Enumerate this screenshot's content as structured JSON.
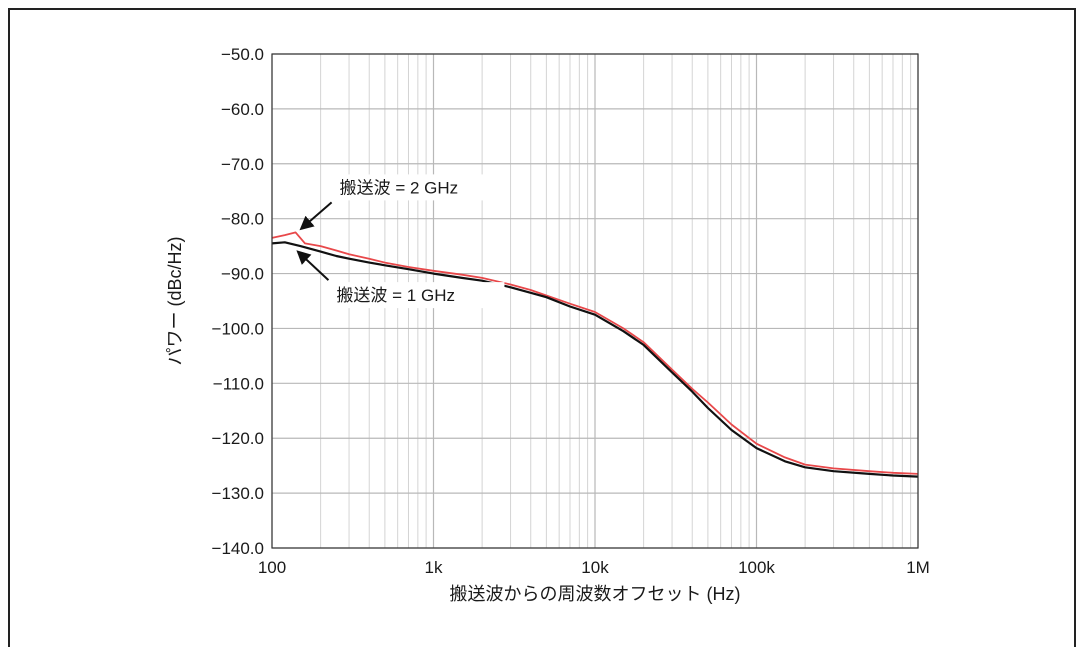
{
  "chart_data": {
    "type": "line",
    "title": "",
    "xlabel": "搬送波からの周波数オフセット (Hz)",
    "ylabel": "パワー (dBc/Hz)",
    "x_scale": "log",
    "xlim": [
      100,
      1000000
    ],
    "ylim": [
      -140,
      -50
    ],
    "grid": true,
    "x_tick_values": [
      100,
      1000,
      10000,
      100000,
      1000000
    ],
    "x_tick_labels": [
      "100",
      "1k",
      "10k",
      "100k",
      "1M"
    ],
    "y_tick_values": [
      -50,
      -60,
      -70,
      -80,
      -90,
      -100,
      -110,
      -120,
      -130,
      -140
    ],
    "y_tick_labels": [
      "−50.0",
      "−60.0",
      "−70.0",
      "−80.0",
      "−90.0",
      "−100.0",
      "−110.0",
      "−120.0",
      "−130.0",
      "−140.0"
    ],
    "series": [
      {
        "name": "搬送波 = 2 GHz",
        "color": "#e8484a",
        "x": [
          100,
          120,
          140,
          160,
          200,
          250,
          300,
          400,
          500,
          700,
          1000,
          1500,
          2000,
          3000,
          4000,
          5000,
          7000,
          10000,
          15000,
          20000,
          30000,
          40000,
          50000,
          70000,
          100000,
          150000,
          200000,
          300000,
          500000,
          700000,
          1000000
        ],
        "y": [
          -83.5,
          -83.0,
          -82.5,
          -84.5,
          -85.0,
          -85.8,
          -86.5,
          -87.3,
          -88.0,
          -88.8,
          -89.5,
          -90.2,
          -90.8,
          -92.0,
          -93.0,
          -94.0,
          -95.5,
          -97.0,
          -100.0,
          -102.5,
          -107.5,
          -111.0,
          -113.5,
          -117.5,
          -121.0,
          -123.5,
          -124.8,
          -125.5,
          -126.0,
          -126.3,
          -126.5
        ]
      },
      {
        "name": "搬送波 = 1 GHz",
        "color": "#111111",
        "x": [
          100,
          120,
          150,
          200,
          250,
          300,
          400,
          500,
          700,
          1000,
          1500,
          2000,
          3000,
          4000,
          5000,
          7000,
          10000,
          15000,
          20000,
          30000,
          40000,
          50000,
          70000,
          100000,
          150000,
          200000,
          300000,
          500000,
          700000,
          1000000
        ],
        "y": [
          -84.5,
          -84.3,
          -85.0,
          -86.0,
          -86.8,
          -87.3,
          -88.0,
          -88.5,
          -89.2,
          -90.0,
          -90.8,
          -91.3,
          -92.5,
          -93.5,
          -94.3,
          -96.0,
          -97.5,
          -100.5,
          -103.0,
          -108.0,
          -111.5,
          -114.5,
          -118.5,
          -121.8,
          -124.2,
          -125.3,
          -126.0,
          -126.5,
          -126.8,
          -127.0
        ]
      }
    ],
    "annotations": [
      {
        "text": "搬送波 = 2 GHz",
        "x": 140,
        "y": -82.5
      },
      {
        "text": "搬送波 = 1 GHz",
        "x": 150,
        "y": -85.0
      }
    ]
  }
}
